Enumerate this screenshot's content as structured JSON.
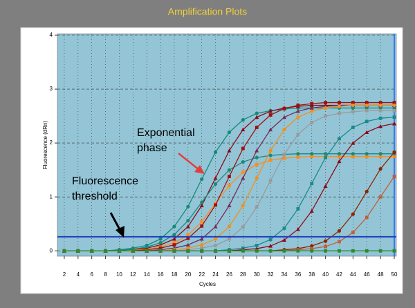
{
  "chart_data": {
    "type": "line",
    "title": "Amplification Plots",
    "x_label": "Cycles",
    "y_label": "Fluorescence (dRn)",
    "x": [
      2,
      4,
      6,
      8,
      10,
      12,
      14,
      16,
      18,
      20,
      22,
      24,
      26,
      28,
      30,
      32,
      34,
      36,
      38,
      40,
      42,
      44,
      46,
      48,
      50
    ],
    "xlim": [
      1,
      50
    ],
    "ylim": [
      -0.1,
      4
    ],
    "xticks": [
      2,
      4,
      6,
      8,
      10,
      12,
      14,
      16,
      18,
      20,
      22,
      24,
      26,
      28,
      30,
      32,
      34,
      36,
      38,
      40,
      42,
      44,
      46,
      48,
      50
    ],
    "yticks": [
      0,
      1,
      2,
      3,
      4
    ],
    "grid": true,
    "threshold": 0.26,
    "threshold_color": "#1f3fbf",
    "annotations": [
      [
        "Exponential",
        "phase"
      ],
      [
        "Fluorescence",
        "threshold"
      ]
    ],
    "series": [
      {
        "color": "#138a78",
        "marker": "circle",
        "values": [
          0,
          0,
          0,
          0,
          0.02,
          0.05,
          0.1,
          0.22,
          0.45,
          0.82,
          1.33,
          1.83,
          2.2,
          2.43,
          2.55,
          2.6,
          2.63,
          2.65,
          2.65,
          2.65,
          2.65,
          2.65,
          2.65,
          2.65,
          2.65
        ]
      },
      {
        "color": "#8b0a1a",
        "marker": "triangle",
        "values": [
          0,
          0,
          0,
          0,
          0,
          0.02,
          0.05,
          0.11,
          0.22,
          0.45,
          0.84,
          1.35,
          1.86,
          2.25,
          2.48,
          2.59,
          2.65,
          2.68,
          2.7,
          2.7,
          2.7,
          2.7,
          2.7,
          2.7,
          2.7
        ]
      },
      {
        "color": "#ff8c1a",
        "marker": "square",
        "values": [
          0,
          0,
          0,
          0,
          0,
          0.01,
          0.03,
          0.07,
          0.15,
          0.29,
          0.54,
          0.88,
          1.21,
          1.46,
          1.6,
          1.68,
          1.72,
          1.74,
          1.75,
          1.75,
          1.75,
          1.75,
          1.75,
          1.75,
          1.75
        ]
      },
      {
        "color": "#1a8a7a",
        "marker": "circle",
        "values": [
          0,
          0,
          0,
          0,
          0.01,
          0.03,
          0.07,
          0.15,
          0.3,
          0.56,
          0.9,
          1.24,
          1.5,
          1.65,
          1.73,
          1.77,
          1.79,
          1.8,
          1.8,
          1.8,
          1.8,
          1.8,
          1.8,
          1.8,
          1.8
        ]
      },
      {
        "color": "#a01010",
        "marker": "square",
        "values": [
          0,
          0,
          0,
          0,
          0,
          0,
          0.02,
          0.05,
          0.11,
          0.23,
          0.46,
          0.85,
          1.38,
          1.9,
          2.29,
          2.52,
          2.64,
          2.7,
          2.73,
          2.75,
          2.75,
          2.75,
          2.75,
          2.75,
          2.75
        ]
      },
      {
        "color": "#7a2a5a",
        "marker": "triangle",
        "values": [
          0,
          0,
          0,
          0,
          0,
          0,
          0,
          0.02,
          0.05,
          0.11,
          0.22,
          0.45,
          0.84,
          1.35,
          1.86,
          2.25,
          2.48,
          2.59,
          2.65,
          2.68,
          2.7,
          2.7,
          2.7,
          2.7,
          2.7
        ]
      },
      {
        "color": "#9a9a9a",
        "marker": "square",
        "values": [
          0,
          0,
          0,
          0,
          0,
          0,
          0,
          0,
          0,
          0.02,
          0.05,
          0.1,
          0.22,
          0.44,
          0.81,
          1.3,
          1.79,
          2.16,
          2.38,
          2.5,
          2.55,
          2.58,
          2.6,
          2.6,
          2.6
        ]
      },
      {
        "color": "#f0901e",
        "marker": "circle",
        "values": [
          0,
          0,
          0,
          0,
          0,
          0,
          0,
          0,
          0.02,
          0.05,
          0.11,
          0.22,
          0.45,
          0.84,
          1.35,
          1.86,
          2.25,
          2.48,
          2.59,
          2.65,
          2.68,
          2.7,
          2.7,
          2.7,
          2.7
        ]
      },
      {
        "color": "#1a8a8a",
        "marker": "square",
        "values": [
          0,
          0,
          0,
          0,
          0,
          0,
          0,
          0,
          0,
          0,
          0,
          0,
          0.02,
          0.05,
          0.1,
          0.21,
          0.42,
          0.78,
          1.25,
          1.73,
          2.08,
          2.29,
          2.4,
          2.46,
          2.48
        ]
      },
      {
        "color": "#8b0a1a",
        "marker": "triangle",
        "values": [
          0,
          0,
          0,
          0,
          0,
          0,
          0,
          0,
          0,
          0,
          0,
          0,
          0,
          0.02,
          0.04,
          0.09,
          0.2,
          0.4,
          0.74,
          1.2,
          1.66,
          2.0,
          2.2,
          2.31,
          2.36
        ]
      },
      {
        "color": "#8b2500",
        "marker": "circle",
        "values": [
          0,
          0,
          0,
          0,
          0,
          0,
          0,
          0,
          0,
          0,
          0,
          0,
          0,
          0,
          0,
          0,
          0.02,
          0.04,
          0.09,
          0.18,
          0.37,
          0.68,
          1.1,
          1.52,
          1.83
        ]
      },
      {
        "color": "#c0603a",
        "marker": "square",
        "values": [
          0,
          0,
          0,
          0,
          0,
          0,
          0,
          0,
          0,
          0,
          0,
          0,
          0,
          0,
          0,
          0,
          0,
          0.02,
          0.04,
          0.08,
          0.17,
          0.34,
          0.62,
          1.0,
          1.38
        ]
      },
      {
        "color": "#2e8b2e",
        "marker": "square",
        "values": [
          0,
          0,
          0,
          0,
          0,
          0,
          0,
          0,
          0,
          0,
          0,
          0,
          0,
          0,
          0,
          0,
          0,
          0,
          0,
          0,
          0,
          0,
          0,
          0,
          0
        ]
      }
    ]
  }
}
